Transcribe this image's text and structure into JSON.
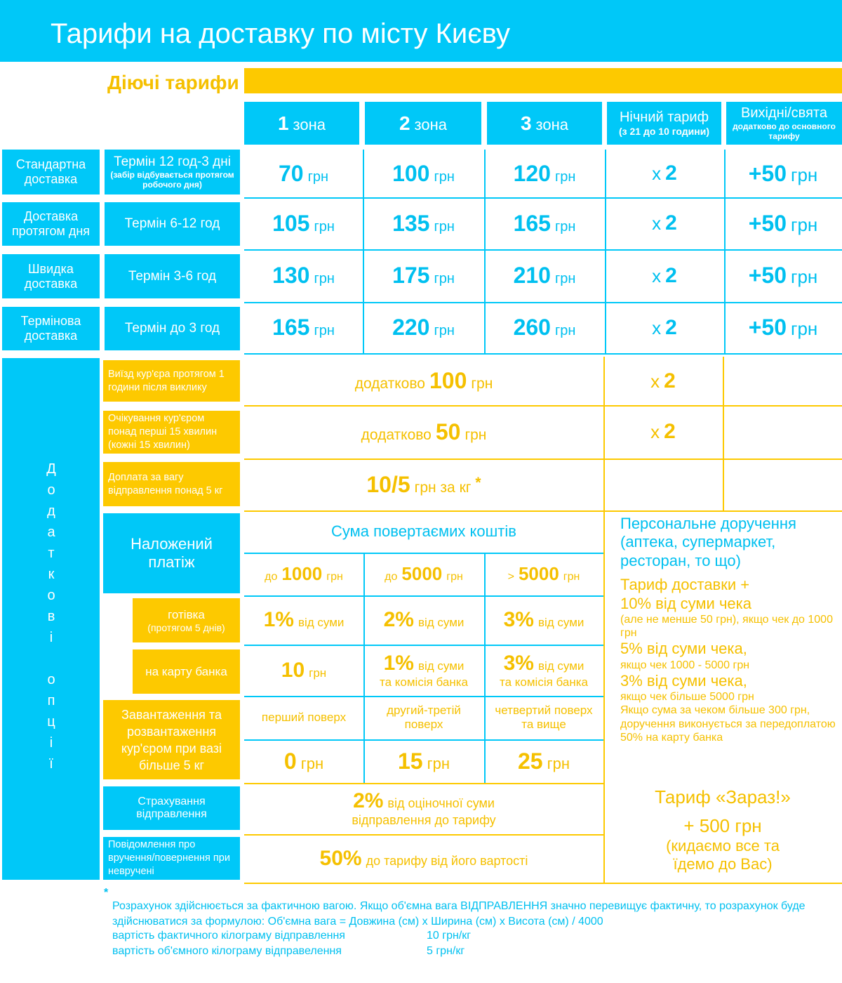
{
  "header": {
    "title": "Тарифи на доставку по місту Києву"
  },
  "section_title": "Діючі тарифи",
  "columns": [
    {
      "amount": "1",
      "unit": "зона"
    },
    {
      "amount": "2",
      "unit": "зона"
    },
    {
      "amount": "3",
      "unit": "зона"
    },
    {
      "title": "Нічний тариф",
      "note": "(з 21 до 10 години)"
    },
    {
      "title": "Вихідні/свята",
      "note": "додатково до основного тарифу"
    }
  ],
  "delivery_rows": [
    {
      "name": "Стандартна доставка",
      "term": "Термін 12 год-3 дні",
      "term_note": "(забір відбувається протягом робочого дня)",
      "prices": [
        {
          "amount": 70,
          "unit": "грн"
        },
        {
          "amount": 100,
          "unit": "грн"
        },
        {
          "amount": 120,
          "unit": "грн"
        }
      ],
      "night": {
        "prefix": "х",
        "amount": 2
      },
      "weekend": {
        "amount": "+50",
        "unit": "грн"
      }
    },
    {
      "name": "Доставка протягом дня",
      "term": "Термін 6-12 год",
      "prices": [
        {
          "amount": 105,
          "unit": "грн"
        },
        {
          "amount": 135,
          "unit": "грн"
        },
        {
          "amount": 165,
          "unit": "грн"
        }
      ],
      "night": {
        "prefix": "х",
        "amount": 2
      },
      "weekend": {
        "amount": "+50",
        "unit": "грн"
      }
    },
    {
      "name": "Швидка доставка",
      "term": "Термін 3-6 год",
      "prices": [
        {
          "amount": 130,
          "unit": "грн"
        },
        {
          "amount": 175,
          "unit": "грн"
        },
        {
          "amount": 210,
          "unit": "грн"
        }
      ],
      "night": {
        "prefix": "х",
        "amount": 2
      },
      "weekend": {
        "amount": "+50",
        "unit": "грн"
      }
    },
    {
      "name": "Термінова доставка",
      "term": "Термін до 3 год",
      "prices": [
        {
          "amount": 165,
          "unit": "грн"
        },
        {
          "amount": 220,
          "unit": "грн"
        },
        {
          "amount": 260,
          "unit": "грн"
        }
      ],
      "night": {
        "prefix": "х",
        "amount": 2
      },
      "weekend": {
        "amount": "+50",
        "unit": "грн"
      }
    }
  ],
  "options_label": "Додаткові опції",
  "options": [
    {
      "label": "Виїзд кур'єра протягом 1 години після виклику",
      "price": {
        "prefix": "додатково",
        "amount": 100,
        "unit": "грн"
      },
      "night": {
        "prefix": "х",
        "amount": 2
      }
    },
    {
      "label": "Очікування кур'єром понад перші 15 хвилин (кожні 15 хвилин)",
      "price": {
        "prefix": "додатково",
        "amount": 50,
        "unit": "грн"
      },
      "night": {
        "prefix": "х",
        "amount": 2
      }
    },
    {
      "label": "Доплата за вагу відправлення понад 5 кг",
      "price": {
        "amount": "10/5",
        "unit": "грн за кг",
        "mark": "*"
      }
    }
  ],
  "cod": {
    "label": "Наложений платіж",
    "header": "Сума повертаємих коштів",
    "columns": [
      {
        "prefix": "до",
        "amount": 1000,
        "unit": "грн"
      },
      {
        "prefix": "до",
        "amount": 5000,
        "unit": "грн"
      },
      {
        "prefix": ">",
        "amount": 5000,
        "unit": "грн"
      }
    ],
    "rows": [
      {
        "label": "готівка",
        "note": "(протягом 5 днів)",
        "cells": [
          {
            "amount": "1%",
            "unit": "від суми"
          },
          {
            "amount": "2%",
            "unit": "від суми"
          },
          {
            "amount": "3%",
            "unit": "від суми"
          }
        ]
      },
      {
        "label": "на карту банка",
        "cells": [
          {
            "amount": 10,
            "unit": "грн"
          },
          {
            "amount": "1%",
            "unit": "від суми",
            "note": "та комісія банка"
          },
          {
            "amount": "3%",
            "unit": "від суми",
            "note": "та комісія банка"
          }
        ]
      }
    ]
  },
  "loading": {
    "label": "Завантаження та розвантаження кур'єром при вазі більше 5 кг",
    "floors": [
      "перший поверх",
      "другий-третій поверх",
      "четвертий поверх та вище"
    ],
    "prices": [
      {
        "amount": 0,
        "unit": "грн"
      },
      {
        "amount": 15,
        "unit": "грн"
      },
      {
        "amount": 25,
        "unit": "грн"
      }
    ]
  },
  "insurance": {
    "label": "Страхування відправлення",
    "price": {
      "amount": "2%",
      "unit": "від оціночної суми",
      "note": "відправлення до тарифу"
    }
  },
  "notification": {
    "label": "Повідомлення про вручення/повернення при невручені",
    "price": {
      "amount": "50%",
      "unit": "до тарифу від його вартості"
    }
  },
  "personal": {
    "title": "Персональне доручення (аптека, супермаркет, ресторан, то що)",
    "lines": [
      "Тариф доставки +",
      "10% від суми чека",
      "(але не менше 50 грн), якщо чек до 1000 грн",
      "5% від суми чека,",
      "якщо чек 1000 - 5000 грн",
      "3% від суми чека,",
      "якщо чек більше 5000 грн",
      "Якщо сума за чеком більше 300 грн, доручення виконується за передоплатою 50% на карту банка"
    ]
  },
  "now": {
    "title": "Тариф «Зараз!»",
    "price": "+ 500 грн",
    "note": "(кидаємо все та їдемо до Вас)"
  },
  "footnote": {
    "mark": "*",
    "text": "Розрахунок здійснюється за фактичною вагою. Якщо об'ємна вага ВІДПРАВЛЕННЯ значно перевищує фактичну, то розрахунок буде здійснюватися за формулою: Об'ємна вага = Довжина (см) х Ширина (см) х Висота (см) / 4000",
    "rows": [
      [
        "вартість фактичного кілограму відправлення",
        "10 грн/кг"
      ],
      [
        "вартість об'ємного кілограму відправелення",
        "5 грн/кг"
      ]
    ]
  }
}
